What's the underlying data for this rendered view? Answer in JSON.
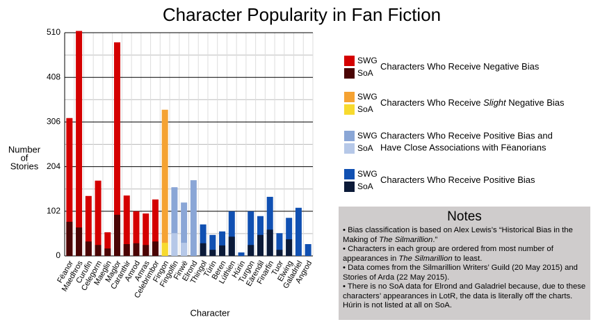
{
  "chart_data": {
    "type": "bar",
    "title": "Character Popularity in Fan Fiction",
    "xlabel": "Character",
    "ylabel": [
      "Number",
      "of",
      "Stories"
    ],
    "categories": [
      "Fëanor",
      "Maedhros",
      "Curufin",
      "Celegorm",
      "Maeglin",
      "Maglor",
      "Caranthir",
      "Amrod",
      "Amras",
      "Celebrimbor",
      "Fingon",
      "Fingolfin",
      "Finwë",
      "Elrond",
      "Thingol",
      "Túrin",
      "Beren",
      "Lúthien",
      "Húrin",
      "Turgon",
      "Eärendil",
      "Finarfin",
      "Tuor",
      "Elwing",
      "Galadriel",
      "Angrod"
    ],
    "category_group": [
      0,
      0,
      0,
      0,
      0,
      0,
      0,
      0,
      0,
      0,
      1,
      2,
      2,
      2,
      3,
      3,
      3,
      3,
      3,
      3,
      3,
      3,
      3,
      3,
      3,
      3
    ],
    "series": [
      {
        "name": "SWG",
        "values": [
          315,
          514,
          137,
          172,
          54,
          488,
          138,
          102,
          97,
          129,
          334,
          157,
          122,
          173,
          72,
          48,
          56,
          102,
          8,
          102,
          91,
          135,
          52,
          87,
          110,
          27
        ]
      },
      {
        "name": "SoA",
        "values": [
          78,
          65,
          33,
          25,
          17,
          94,
          27,
          29,
          25,
          33,
          30,
          52,
          30,
          null,
          29,
          14,
          24,
          44,
          null,
          25,
          48,
          60,
          14,
          38,
          null,
          null
        ]
      }
    ],
    "groups": [
      {
        "swg_color": "#d40000",
        "soa_color": "#4a0404",
        "label": [
          [
            "Characters Who Receive Negative Bias"
          ]
        ]
      },
      {
        "swg_color": "#f5a232",
        "soa_color": "#f7da2e",
        "label": [
          [
            "Characters Who Receive ",
            "Slight",
            " Negative Bias"
          ]
        ]
      },
      {
        "swg_color": "#8aa6d6",
        "soa_color": "#b6c8e8",
        "label": [
          [
            "Characters Who Receive Positive Bias and"
          ],
          [
            "Have Close Associations with Fëanorians"
          ]
        ]
      },
      {
        "swg_color": "#1050b2",
        "soa_color": "#0b1a38",
        "label": [
          [
            "Characters Who Receive Positive Bias"
          ]
        ]
      }
    ],
    "ylim": [
      0,
      510
    ],
    "yticks": [
      0,
      102,
      204,
      306,
      408,
      510
    ],
    "minor_yticks": [
      51,
      153,
      255,
      357,
      459
    ],
    "grid": true,
    "notes_title": "Notes",
    "notes": [
      [
        "• Bias classification is based on Alex Lewis’s “Historical Bias in the Making of ",
        "The Silmarillion",
        ".”"
      ],
      [
        "• Characters in each group are ordered from most number of appearances in ",
        "The Silmarillion",
        " to least."
      ],
      [
        "• Data comes from the Silmarillion Writers’ Guild (20 May 2015) and Stories of Arda (22 May 2015)."
      ],
      [
        "• There is no SoA data for Elrond and Galadriel because, due to these characters’ appearances in LotR, the data is literally off the charts. Húrin is not listed at all on SoA."
      ]
    ]
  }
}
